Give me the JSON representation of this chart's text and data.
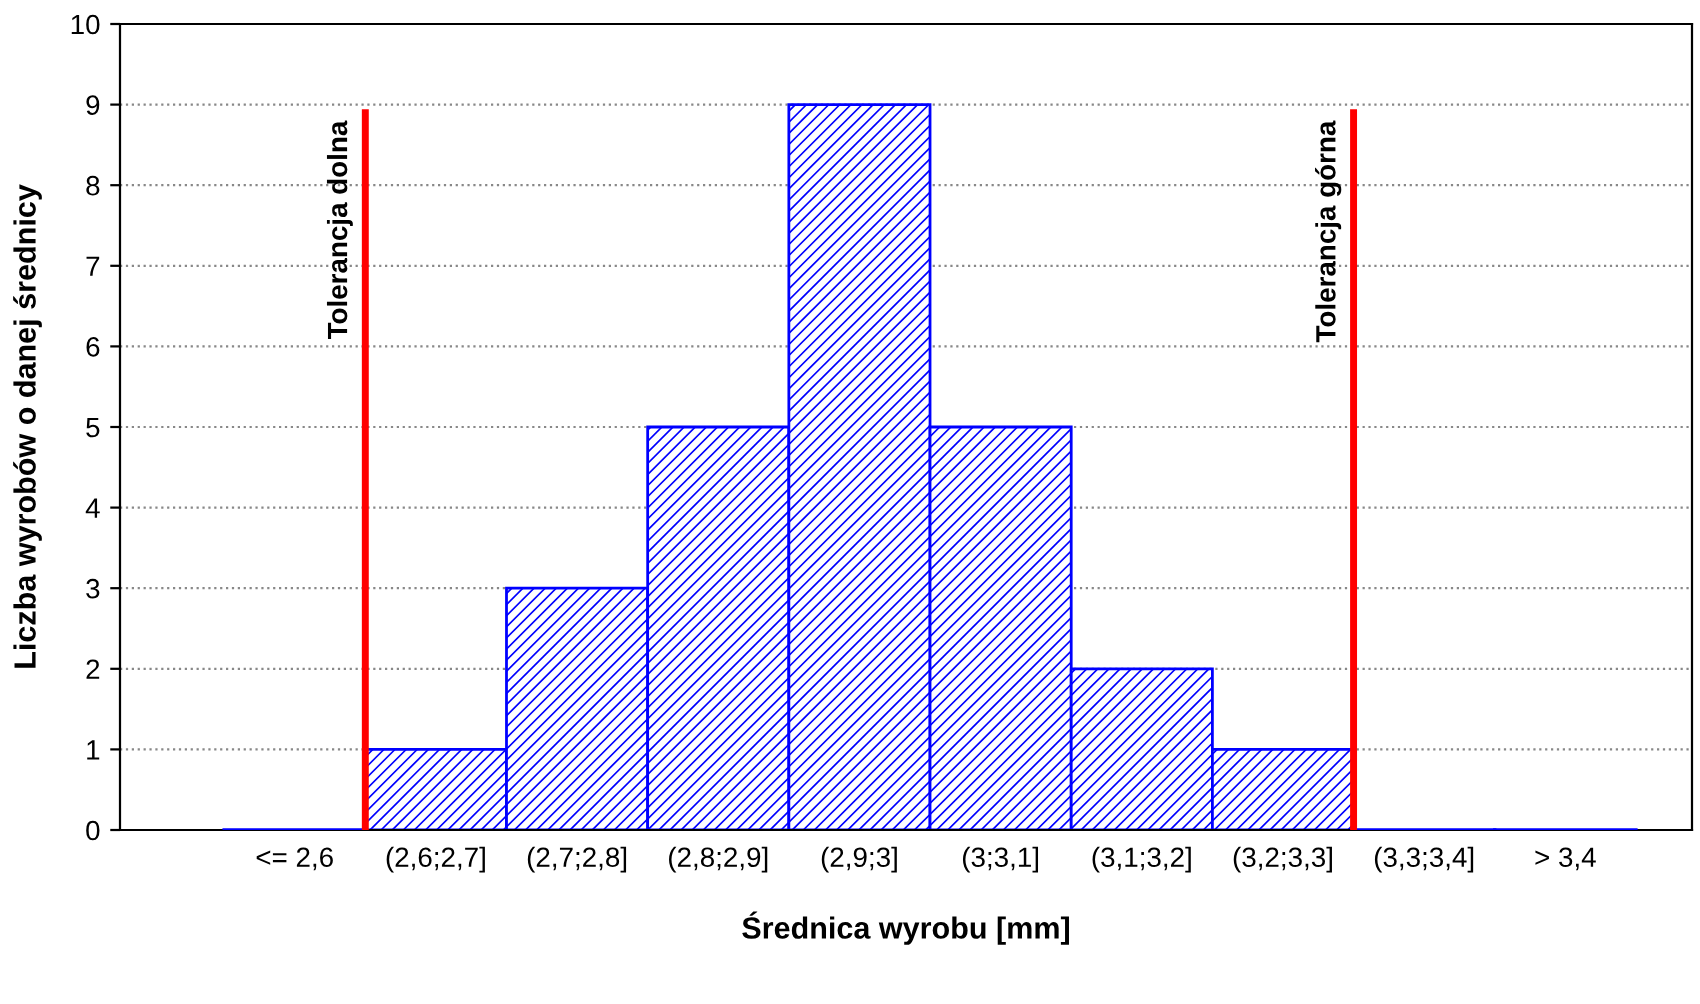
{
  "chart_data": {
    "type": "bar",
    "xlabel": "Średnica wyrobu [mm]",
    "ylabel": "Liczba wyrobów o danej średnicy",
    "categories": [
      "<= 2,6",
      "(2,6;2,7]",
      "(2,7;2,8]",
      "(2,8;2,9]",
      "(2,9;3]",
      "(3;3,1]",
      "(3,1;3,2]",
      "(3,2;3,3]",
      "(3,3;3,4]",
      "> 3,4"
    ],
    "values": [
      0,
      1,
      3,
      5,
      9,
      5,
      2,
      1,
      0,
      0
    ],
    "color": "#0000ff",
    "ylim": [
      0,
      10
    ],
    "yticks": [
      0,
      1,
      2,
      3,
      4,
      5,
      6,
      7,
      8,
      9,
      10
    ],
    "grid": "y",
    "annotations": [
      "Tolerancja dolna",
      "Tolerancja górna"
    ]
  }
}
